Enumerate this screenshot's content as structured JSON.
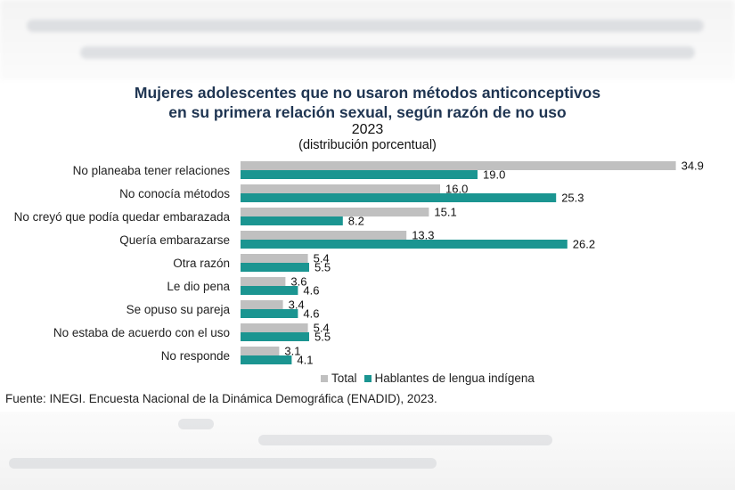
{
  "figure": {
    "title_line1": "Mujeres adolescentes que no usaron métodos anticonceptivos",
    "title_line2": "en su primera relación sexual, según razón de no uso",
    "year": "2023",
    "unit": "(distribución porcentual)",
    "source": "Fuente: INEGI. Encuesta Nacional de la Dinámica Demográfica (ENADID), 2023.",
    "colors": {
      "total": "#c0c0c0",
      "indigena": "#1b9591"
    }
  },
  "chart_data": {
    "type": "bar",
    "orientation": "horizontal",
    "categories": [
      "No planeaba tener relaciones",
      "No conocía métodos",
      "No creyó que podía quedar embarazada",
      "Quería embarazarse",
      "Otra razón",
      "Le dio pena",
      "Se opuso su pareja",
      "No estaba de acuerdo con el uso",
      "No responde"
    ],
    "series": [
      {
        "name": "Total",
        "values": [
          34.9,
          16.0,
          15.1,
          13.3,
          5.4,
          3.6,
          3.4,
          5.4,
          3.1
        ]
      },
      {
        "name": "Hablantes de lengua indígena",
        "values": [
          19.0,
          25.3,
          8.2,
          26.2,
          5.5,
          4.6,
          4.6,
          5.5,
          4.1
        ]
      }
    ],
    "xlim": [
      0,
      35
    ],
    "grid": false,
    "legend_position": "bottom"
  }
}
